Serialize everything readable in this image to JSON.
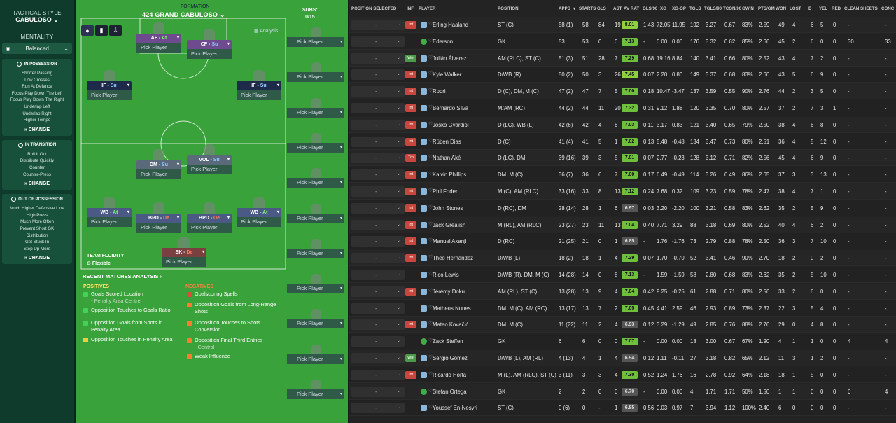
{
  "left_panel": {
    "tactical_style_label": "TACTICAL STYLE",
    "tactical_style": "CABULOSO",
    "mentality_label": "MENTALITY",
    "mentality": "Balanced",
    "in_possession": {
      "title": "IN POSSESSION",
      "items": [
        "Shorter Passing",
        "Low Crosses",
        "Run At Defence",
        "Focus Play Down The Left",
        "Focus Play Down The Right",
        "Underlap Left",
        "Underlap Right",
        "Higher Tempo"
      ],
      "change": "CHANGE"
    },
    "in_transition": {
      "title": "IN TRANSITION",
      "items": [
        "Roll It Out",
        "Distribute Quickly",
        "Counter",
        "Counter-Press"
      ],
      "change": "CHANGE"
    },
    "out_of_possession": {
      "title": "OUT OF POSSESSION",
      "items": [
        "Much Higher Defensive Line",
        "High Press",
        "Much More Often",
        "Prevent Short GK",
        "Distribution",
        "Get Stuck In",
        "Step Up More"
      ],
      "change": "CHANGE"
    }
  },
  "pitch": {
    "formation_label": "FORMATION",
    "formation_name": "424 GRAND CABULOSO",
    "analysis_label": "Analysis",
    "subs_label": "SUBS:",
    "subs_count": "0/15",
    "pick_player": "Pick Player",
    "positions": [
      {
        "role": "AF",
        "duty": "At",
        "color": "#6e4a8f"
      },
      {
        "role": "CF",
        "duty": "Su",
        "color": "#6e4a8f"
      },
      {
        "role": "IF",
        "duty": "Su",
        "color": "#1e2a4a"
      },
      {
        "role": "IF",
        "duty": "Su",
        "color": "#1e2a4a"
      },
      {
        "role": "DM",
        "duty": "Su",
        "color": "#5b6a7a"
      },
      {
        "role": "VOL",
        "duty": "Su",
        "color": "#5b6a7a"
      },
      {
        "role": "WB",
        "duty": "At",
        "color": "#4a5a85"
      },
      {
        "role": "BPD",
        "duty": "De",
        "color": "#4a5a85"
      },
      {
        "role": "BPD",
        "duty": "De",
        "color": "#4a5a85"
      },
      {
        "role": "WB",
        "duty": "At",
        "color": "#4a5a85"
      },
      {
        "role": "SK",
        "duty": "De",
        "color": "#7a4040"
      }
    ],
    "team_fluidity_label": "TEAM FLUIDITY",
    "team_fluidity": "Flexible",
    "recent_analysis": "RECENT MATCHES ANALYSIS",
    "positives_label": "POSITIVES",
    "negatives_label": "NEGATIVES",
    "positives": [
      {
        "text": "Goals Scored Location",
        "sub": "- Penalty Area Centre"
      },
      {
        "text": "Opposition Touches to Goals Ratio",
        "sub": ""
      },
      {
        "text": "Opposition Goals from Shots in Penalty Area",
        "sub": ""
      },
      {
        "text": "Opposition Touches in Penalty Area",
        "sub": ""
      }
    ],
    "negatives": [
      {
        "text": "Goalscoring Spells",
        "sub": ""
      },
      {
        "text": "Opposition Goals from Long-Range Shots",
        "sub": ""
      },
      {
        "text": "Opposition Touches to Shots Conversion",
        "sub": ""
      },
      {
        "text": "Opposition Final Third Entries",
        "sub": "- Central"
      },
      {
        "text": "Weak Influence",
        "sub": ""
      }
    ]
  },
  "table": {
    "headers": [
      "POSITION SELECTED",
      "INF",
      "PLAYER",
      "POSITION",
      "APPS",
      "STARTS",
      "GLS",
      "AST",
      "AV RAT",
      "GLS/90",
      "XG",
      "XG-OP",
      "TGLS",
      "TGLS/90",
      "TCON/90",
      "GWIN",
      "PTS/GM",
      "WON",
      "LOST",
      "D",
      "YEL",
      "RED",
      "CLEAN SHEETS",
      "CONC"
    ],
    "sort_icon": "▾",
    "rows": [
      [
        "Erling Haaland",
        "Int",
        "ST (C)",
        "58 (1)",
        "58",
        "84",
        "19",
        "8.01",
        "1.43",
        "72.05",
        "11.95",
        "192",
        "3.27",
        "0.67",
        "83%",
        "2.59",
        "49",
        "4",
        "6",
        "5",
        "0",
        "-",
        "-"
      ],
      [
        "Ederson",
        "",
        "GK",
        "53",
        "53",
        "0",
        "0",
        "7.13",
        "-",
        "0.00",
        "0.00",
        "176",
        "3.32",
        "0.62",
        "85%",
        "2.66",
        "45",
        "2",
        "6",
        "0",
        "0",
        "30",
        "33"
      ],
      [
        "Julián Álvarez",
        "Wnt",
        "AM (RLC), ST (C)",
        "51 (3)",
        "51",
        "28",
        "7",
        "7.29",
        "0.68",
        "19.16",
        "8.84",
        "140",
        "3.41",
        "0.66",
        "80%",
        "2.52",
        "43",
        "4",
        "7",
        "2",
        "0",
        "-",
        "-"
      ],
      [
        "Kyle Walker",
        "Int",
        "D/WB (R)",
        "50 (2)",
        "50",
        "3",
        "26",
        "7.45",
        "0.07",
        "2.20",
        "0.80",
        "149",
        "3.37",
        "0.68",
        "83%",
        "2.60",
        "43",
        "5",
        "6",
        "9",
        "0",
        "-",
        "-"
      ],
      [
        "Rodri",
        "Int",
        "D (C), DM, M (C)",
        "47 (2)",
        "47",
        "7",
        "5",
        "7.00",
        "0.18",
        "10.47",
        "-3.47",
        "137",
        "3.59",
        "0.55",
        "90%",
        "2.76",
        "44",
        "2",
        "3",
        "5",
        "0",
        "-",
        "-"
      ],
      [
        "Bernardo Silva",
        "Int",
        "M/AM (RC)",
        "44 (2)",
        "44",
        "11",
        "20",
        "7.32",
        "0.31",
        "9.12",
        "1.88",
        "120",
        "3.35",
        "0.70",
        "80%",
        "2.57",
        "37",
        "2",
        "7",
        "3",
        "1",
        "-",
        "-"
      ],
      [
        "Joško Gvardiol",
        "Int",
        "D (LC), WB (L)",
        "42 (6)",
        "42",
        "4",
        "6",
        "7.03",
        "0.11",
        "3.17",
        "0.83",
        "121",
        "3.40",
        "0.65",
        "79%",
        "2.50",
        "38",
        "4",
        "6",
        "8",
        "0",
        "-",
        "-"
      ],
      [
        "Rúben Dias",
        "Int",
        "D (C)",
        "41 (4)",
        "41",
        "5",
        "1",
        "7.02",
        "0.13",
        "5.48",
        "-0.48",
        "134",
        "3.47",
        "0.73",
        "80%",
        "2.51",
        "36",
        "4",
        "5",
        "12",
        "0",
        "-",
        "-"
      ],
      [
        "Nathan Aké",
        "Trn",
        "D (LC), DM",
        "39 (16)",
        "39",
        "3",
        "5",
        "7.01",
        "0.07",
        "2.77",
        "-0.23",
        "128",
        "3.12",
        "0.71",
        "82%",
        "2.56",
        "45",
        "4",
        "6",
        "9",
        "0",
        "-",
        "-"
      ],
      [
        "Kalvin Phillips",
        "Int",
        "DM, M (C)",
        "36 (7)",
        "36",
        "6",
        "7",
        "7.00",
        "0.17",
        "6.49",
        "-0.49",
        "114",
        "3.26",
        "0.49",
        "86%",
        "2.65",
        "37",
        "3",
        "3",
        "13",
        "0",
        "-",
        "-"
      ],
      [
        "Phil Foden",
        "Int",
        "M (C), AM (RLC)",
        "33 (16)",
        "33",
        "8",
        "13",
        "7.12",
        "0.24",
        "7.68",
        "0.32",
        "109",
        "3.23",
        "0.59",
        "78%",
        "2.47",
        "38",
        "4",
        "7",
        "1",
        "0",
        "-",
        "-"
      ],
      [
        "John Stones",
        "Int",
        "D (RC), DM",
        "28 (14)",
        "28",
        "1",
        "6",
        "6.97",
        "0.03",
        "3.20",
        "-2.20",
        "100",
        "3.21",
        "0.58",
        "83%",
        "2.62",
        "35",
        "2",
        "5",
        "9",
        "0",
        "-",
        "-"
      ],
      [
        "Jack Grealish",
        "Int",
        "M (RL), AM (RLC)",
        "23 (27)",
        "23",
        "11",
        "13",
        "7.04",
        "0.40",
        "7.71",
        "3.29",
        "88",
        "3.18",
        "0.69",
        "80%",
        "2.52",
        "40",
        "4",
        "6",
        "2",
        "0",
        "-",
        "-"
      ],
      [
        "Manuel Akanji",
        "Int",
        "D (RC)",
        "21 (25)",
        "21",
        "0",
        "1",
        "6.85",
        "-",
        "1.76",
        "-1.76",
        "73",
        "2.79",
        "0.88",
        "78%",
        "2.50",
        "36",
        "3",
        "7",
        "10",
        "0",
        "-",
        "-"
      ],
      [
        "Theo Hernández",
        "Int",
        "D/WB (L)",
        "18 (2)",
        "18",
        "1",
        "4",
        "7.29",
        "0.07",
        "1.70",
        "-0.70",
        "52",
        "3.41",
        "0.46",
        "90%",
        "2.70",
        "18",
        "2",
        "0",
        "2",
        "0",
        "-",
        "-"
      ],
      [
        "Rico Lewis",
        "",
        "D/WB (R), DM, M (C)",
        "14 (28)",
        "14",
        "0",
        "8",
        "7.13",
        "-",
        "1.59",
        "-1.59",
        "58",
        "2.80",
        "0.68",
        "83%",
        "2.62",
        "35",
        "2",
        "5",
        "10",
        "0",
        "-",
        "-"
      ],
      [
        "Jérémy Doku",
        "Int",
        "AM (RL), ST (C)",
        "13 (28)",
        "13",
        "9",
        "4",
        "7.04",
        "0.42",
        "9.25",
        "-0.25",
        "61",
        "2.88",
        "0.71",
        "80%",
        "2.56",
        "33",
        "2",
        "6",
        "0",
        "0",
        "-",
        "-"
      ],
      [
        "Matheus Nunes",
        "",
        "DM, M (C), AM (RC)",
        "13 (17)",
        "13",
        "7",
        "2",
        "7.05",
        "0.45",
        "4.41",
        "2.59",
        "46",
        "2.93",
        "0.89",
        "73%",
        "2.37",
        "22",
        "3",
        "5",
        "4",
        "0",
        "-",
        "-"
      ],
      [
        "Mateo Kovačić",
        "Int",
        "DM, M (C)",
        "11 (22)",
        "11",
        "2",
        "4",
        "6.93",
        "0.12",
        "3.29",
        "-1.29",
        "49",
        "2.85",
        "0.76",
        "88%",
        "2.76",
        "29",
        "0",
        "4",
        "8",
        "0",
        "-",
        "-"
      ],
      [
        "Zack Steffen",
        "",
        "GK",
        "6",
        "6",
        "0",
        "0",
        "7.07",
        "-",
        "0.00",
        "0.00",
        "18",
        "3.00",
        "0.67",
        "67%",
        "1.90",
        "4",
        "1",
        "1",
        "0",
        "0",
        "4",
        "4"
      ],
      [
        "Sergio Gómez",
        "Wnt",
        "D/WB (L), AM (RL)",
        "4 (13)",
        "4",
        "1",
        "4",
        "6.94",
        "0.12",
        "1.11",
        "-0.11",
        "27",
        "3.18",
        "0.82",
        "65%",
        "2.12",
        "11",
        "3",
        "1",
        "2",
        "0",
        "-",
        "-"
      ],
      [
        "Ricardo Horta",
        "Int",
        "M (L), AM (RLC), ST (C)",
        "3 (11)",
        "3",
        "3",
        "4",
        "7.30",
        "0.52",
        "1.24",
        "1.76",
        "16",
        "2.78",
        "0.92",
        "64%",
        "2.18",
        "18",
        "1",
        "5",
        "0",
        "0",
        "-",
        "-"
      ],
      [
        "Stefan Ortega",
        "",
        "GK",
        "2",
        "2",
        "0",
        "0",
        "6.70",
        "-",
        "0.00",
        "0.00",
        "4",
        "1.71",
        "1.71",
        "50%",
        "1.50",
        "1",
        "1",
        "0",
        "0",
        "0",
        "0",
        "4"
      ],
      [
        "Youssef En-Nesyri",
        "",
        "ST (C)",
        "0 (6)",
        "0",
        "-",
        "1",
        "6.85",
        "0.56",
        "0.03",
        "0.97",
        "7",
        "3.94",
        "1.12",
        "100%",
        "2.40",
        "6",
        "0",
        "0",
        "0",
        "0",
        "-",
        "-"
      ]
    ]
  }
}
